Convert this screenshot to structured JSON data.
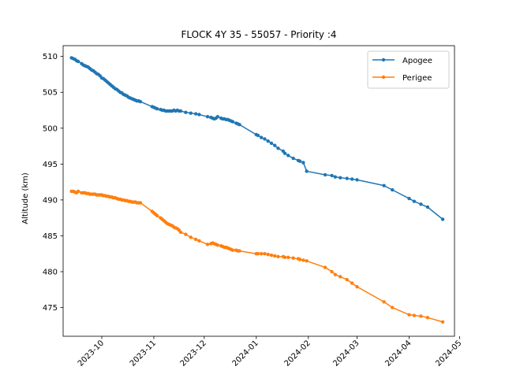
{
  "chart_data": {
    "type": "line",
    "title": "FLOCK 4Y 35 - 55057 - Priority :4",
    "xlabel": "",
    "ylabel": "Altitude (km)",
    "ylim": [
      471,
      511.5
    ],
    "xlim": [
      "2023-09-08",
      "2024-04-28"
    ],
    "x_tick_labels": [
      "2023-10",
      "2023-11",
      "2023-12",
      "2024-01",
      "2024-02",
      "2024-03",
      "2024-04",
      "2024-05"
    ],
    "x_tick_dates": [
      "2023-10-01",
      "2023-11-01",
      "2023-12-01",
      "2024-01-01",
      "2024-02-01",
      "2024-03-01",
      "2024-04-01",
      "2024-05-01"
    ],
    "y_ticks": [
      475,
      480,
      485,
      490,
      495,
      500,
      505,
      510
    ],
    "legend_position": "upper-right",
    "grid": false,
    "series": [
      {
        "name": "Apogee",
        "color": "#1f77b4",
        "x": [
          "2023-09-13",
          "2023-09-14",
          "2023-09-15",
          "2023-09-16",
          "2023-09-17",
          "2023-09-19",
          "2023-09-20",
          "2023-09-21",
          "2023-09-22",
          "2023-09-23",
          "2023-09-24",
          "2023-09-25",
          "2023-09-26",
          "2023-09-27",
          "2023-09-28",
          "2023-09-29",
          "2023-09-30",
          "2023-10-01",
          "2023-10-02",
          "2023-10-03",
          "2023-10-04",
          "2023-10-05",
          "2023-10-06",
          "2023-10-07",
          "2023-10-08",
          "2023-10-09",
          "2023-10-10",
          "2023-10-11",
          "2023-10-12",
          "2023-10-13",
          "2023-10-14",
          "2023-10-15",
          "2023-10-16",
          "2023-10-17",
          "2023-10-18",
          "2023-10-19",
          "2023-10-20",
          "2023-10-21",
          "2023-10-22",
          "2023-10-23",
          "2023-10-24",
          "2023-10-31",
          "2023-11-01",
          "2023-11-02",
          "2023-11-03",
          "2023-11-05",
          "2023-11-06",
          "2023-11-07",
          "2023-11-08",
          "2023-11-09",
          "2023-11-10",
          "2023-11-11",
          "2023-11-12",
          "2023-11-13",
          "2023-11-14",
          "2023-11-15",
          "2023-11-16",
          "2023-11-17",
          "2023-11-20",
          "2023-11-23",
          "2023-11-26",
          "2023-11-28",
          "2023-12-03",
          "2023-12-05",
          "2023-12-06",
          "2023-12-07",
          "2023-12-08",
          "2023-12-09",
          "2023-12-11",
          "2023-12-12",
          "2023-12-13",
          "2023-12-14",
          "2023-12-15",
          "2023-12-16",
          "2023-12-17",
          "2023-12-18",
          "2023-12-20",
          "2023-12-21",
          "2023-12-22",
          "2024-01-01",
          "2024-01-02",
          "2024-01-04",
          "2024-01-06",
          "2024-01-08",
          "2024-01-10",
          "2024-01-12",
          "2024-01-14",
          "2024-01-17",
          "2024-01-18",
          "2024-01-20",
          "2024-01-23",
          "2024-01-26",
          "2024-01-27",
          "2024-01-29",
          "2024-01-31",
          "2024-02-11",
          "2024-02-15",
          "2024-02-17",
          "2024-02-20",
          "2024-02-24",
          "2024-02-27",
          "2024-03-01",
          "2024-03-17",
          "2024-03-22",
          "2024-04-01",
          "2024-04-04",
          "2024-04-08",
          "2024-04-12",
          "2024-04-21"
        ],
        "y": [
          509.8,
          509.7,
          509.6,
          509.4,
          509.3,
          509.0,
          508.8,
          508.7,
          508.6,
          508.5,
          508.3,
          508.1,
          508.0,
          507.8,
          507.6,
          507.5,
          507.3,
          507.0,
          506.9,
          506.7,
          506.5,
          506.3,
          506.1,
          505.9,
          505.7,
          505.5,
          505.4,
          505.2,
          505.0,
          504.9,
          504.7,
          504.6,
          504.5,
          504.3,
          504.2,
          504.1,
          504.0,
          503.9,
          503.8,
          503.8,
          503.7,
          503.0,
          502.9,
          502.8,
          502.7,
          502.6,
          502.5,
          502.5,
          502.4,
          502.4,
          502.4,
          502.4,
          502.4,
          502.5,
          502.4,
          502.5,
          502.4,
          502.4,
          502.2,
          502.1,
          502.0,
          501.9,
          501.6,
          501.5,
          501.4,
          501.3,
          501.4,
          501.6,
          501.4,
          501.3,
          501.3,
          501.2,
          501.2,
          501.1,
          501.0,
          500.9,
          500.7,
          500.6,
          500.5,
          499.1,
          499.0,
          498.7,
          498.5,
          498.2,
          497.9,
          497.6,
          497.2,
          496.8,
          496.5,
          496.2,
          495.8,
          495.5,
          495.4,
          495.2,
          494.0,
          493.5,
          493.4,
          493.2,
          493.1,
          493.0,
          492.9,
          492.8,
          492.0,
          491.4,
          490.2,
          489.8,
          489.4,
          489.0,
          487.3
        ]
      },
      {
        "name": "Perigee",
        "color": "#ff7f0e",
        "x": [
          "2023-09-13",
          "2023-09-14",
          "2023-09-15",
          "2023-09-16",
          "2023-09-17",
          "2023-09-19",
          "2023-09-20",
          "2023-09-21",
          "2023-09-22",
          "2023-09-23",
          "2023-09-24",
          "2023-09-25",
          "2023-09-26",
          "2023-09-27",
          "2023-09-28",
          "2023-09-29",
          "2023-09-30",
          "2023-10-01",
          "2023-10-02",
          "2023-10-03",
          "2023-10-04",
          "2023-10-05",
          "2023-10-06",
          "2023-10-07",
          "2023-10-08",
          "2023-10-09",
          "2023-10-10",
          "2023-10-11",
          "2023-10-12",
          "2023-10-13",
          "2023-10-14",
          "2023-10-15",
          "2023-10-16",
          "2023-10-17",
          "2023-10-18",
          "2023-10-19",
          "2023-10-20",
          "2023-10-21",
          "2023-10-22",
          "2023-10-23",
          "2023-10-24",
          "2023-10-31",
          "2023-11-01",
          "2023-11-02",
          "2023-11-03",
          "2023-11-05",
          "2023-11-06",
          "2023-11-07",
          "2023-11-08",
          "2023-11-09",
          "2023-11-10",
          "2023-11-11",
          "2023-11-12",
          "2023-11-13",
          "2023-11-14",
          "2023-11-15",
          "2023-11-16",
          "2023-11-17",
          "2023-11-20",
          "2023-11-23",
          "2023-11-26",
          "2023-11-28",
          "2023-12-03",
          "2023-12-05",
          "2023-12-06",
          "2023-12-07",
          "2023-12-08",
          "2023-12-09",
          "2023-12-11",
          "2023-12-12",
          "2023-12-13",
          "2023-12-14",
          "2023-12-15",
          "2023-12-16",
          "2023-12-17",
          "2023-12-18",
          "2023-12-20",
          "2023-12-21",
          "2023-12-22",
          "2024-01-01",
          "2024-01-02",
          "2024-01-04",
          "2024-01-06",
          "2024-01-08",
          "2024-01-10",
          "2024-01-12",
          "2024-01-14",
          "2024-01-17",
          "2024-01-18",
          "2024-01-20",
          "2024-01-23",
          "2024-01-26",
          "2024-01-27",
          "2024-01-29",
          "2024-01-31",
          "2024-02-11",
          "2024-02-15",
          "2024-02-17",
          "2024-02-20",
          "2024-02-24",
          "2024-02-27",
          "2024-03-01",
          "2024-03-17",
          "2024-03-22",
          "2024-04-01",
          "2024-04-04",
          "2024-04-08",
          "2024-04-12",
          "2024-04-21"
        ],
        "y": [
          491.2,
          491.2,
          491.1,
          491.0,
          491.2,
          491.0,
          491.0,
          491.0,
          490.9,
          490.9,
          490.8,
          490.8,
          490.8,
          490.8,
          490.7,
          490.7,
          490.7,
          490.7,
          490.6,
          490.6,
          490.5,
          490.5,
          490.4,
          490.4,
          490.3,
          490.3,
          490.2,
          490.1,
          490.1,
          490.0,
          490.0,
          489.9,
          489.9,
          489.8,
          489.8,
          489.7,
          489.7,
          489.7,
          489.6,
          489.6,
          489.6,
          488.4,
          488.2,
          488.0,
          487.8,
          487.5,
          487.3,
          487.1,
          486.9,
          486.7,
          486.6,
          486.5,
          486.4,
          486.2,
          486.1,
          486.0,
          485.8,
          485.5,
          485.2,
          484.8,
          484.5,
          484.3,
          483.8,
          483.9,
          484.0,
          483.9,
          483.8,
          483.7,
          483.6,
          483.5,
          483.4,
          483.4,
          483.3,
          483.2,
          483.1,
          483.0,
          483.0,
          482.9,
          482.9,
          482.5,
          482.5,
          482.5,
          482.5,
          482.4,
          482.3,
          482.2,
          482.1,
          482.1,
          482.0,
          482.0,
          481.9,
          481.8,
          481.7,
          481.6,
          481.5,
          480.6,
          480.0,
          479.6,
          479.3,
          478.9,
          478.4,
          477.9,
          475.8,
          475.0,
          474.0,
          473.9,
          473.8,
          473.6,
          473.0
        ]
      }
    ]
  }
}
